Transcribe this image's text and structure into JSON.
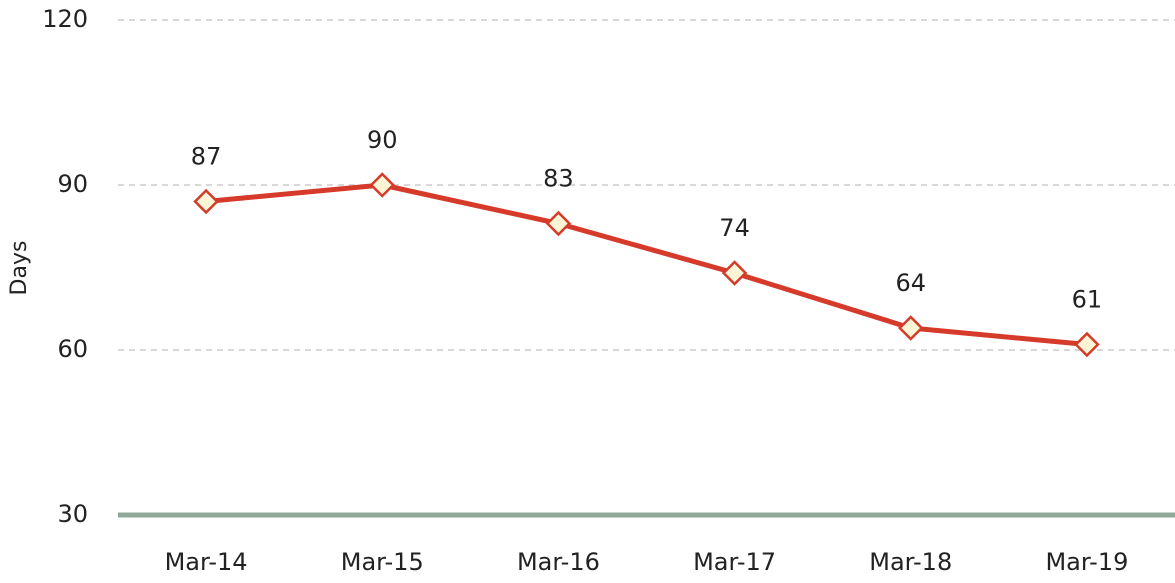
{
  "chart_data": {
    "type": "line",
    "y_label": "Days",
    "categories": [
      "Mar-14",
      "Mar-15",
      "Mar-16",
      "Mar-17",
      "Mar-18",
      "Mar-19"
    ],
    "values": [
      87,
      90,
      83,
      74,
      64,
      61
    ],
    "color": "#d63a2a",
    "marker_fill": "#fbf5d5",
    "baseline_color": "#8fa89a",
    "ylim": [
      30,
      120
    ],
    "yticks": [
      30,
      60,
      90,
      120
    ],
    "grid": true
  }
}
